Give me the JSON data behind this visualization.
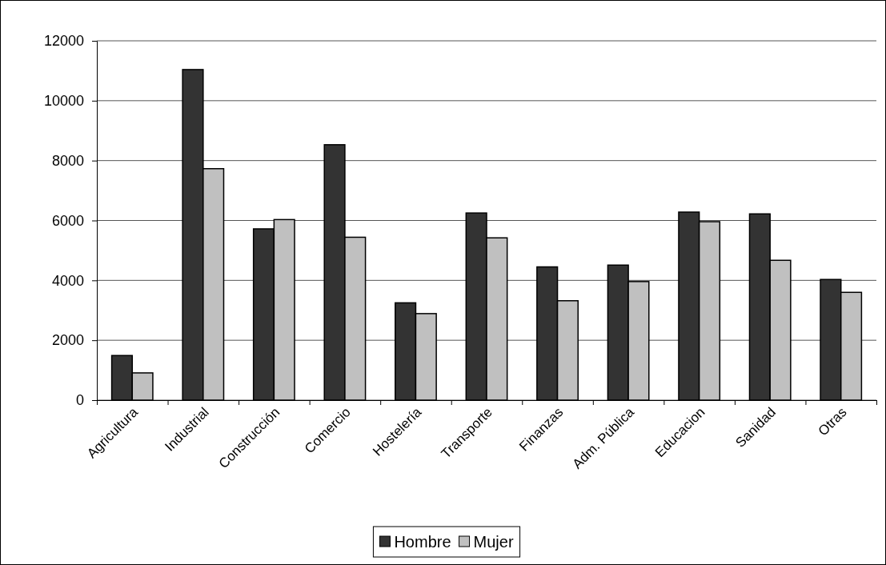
{
  "chart_data": {
    "type": "bar",
    "categories": [
      "Agricultura",
      "Industrial",
      "Construcción",
      "Comercio",
      "Hostelería",
      "Transporte",
      "Finanzas",
      "Adm. Pública",
      "Educacion",
      "Sanidad",
      "Otras"
    ],
    "series": [
      {
        "name": "Hombre",
        "color": "#333333",
        "values": [
          1490,
          11040,
          5720,
          8530,
          3250,
          6250,
          4450,
          4510,
          6280,
          6220,
          4030
        ]
      },
      {
        "name": "Mujer",
        "color": "#c0c0c0",
        "values": [
          910,
          7730,
          6030,
          5440,
          2890,
          5420,
          3320,
          3960,
          5960,
          4670,
          3600
        ]
      }
    ],
    "ylim": [
      0,
      12000
    ],
    "yticks": [
      0,
      2000,
      4000,
      6000,
      8000,
      10000,
      12000
    ],
    "grid": "y",
    "legend": "bottom"
  }
}
